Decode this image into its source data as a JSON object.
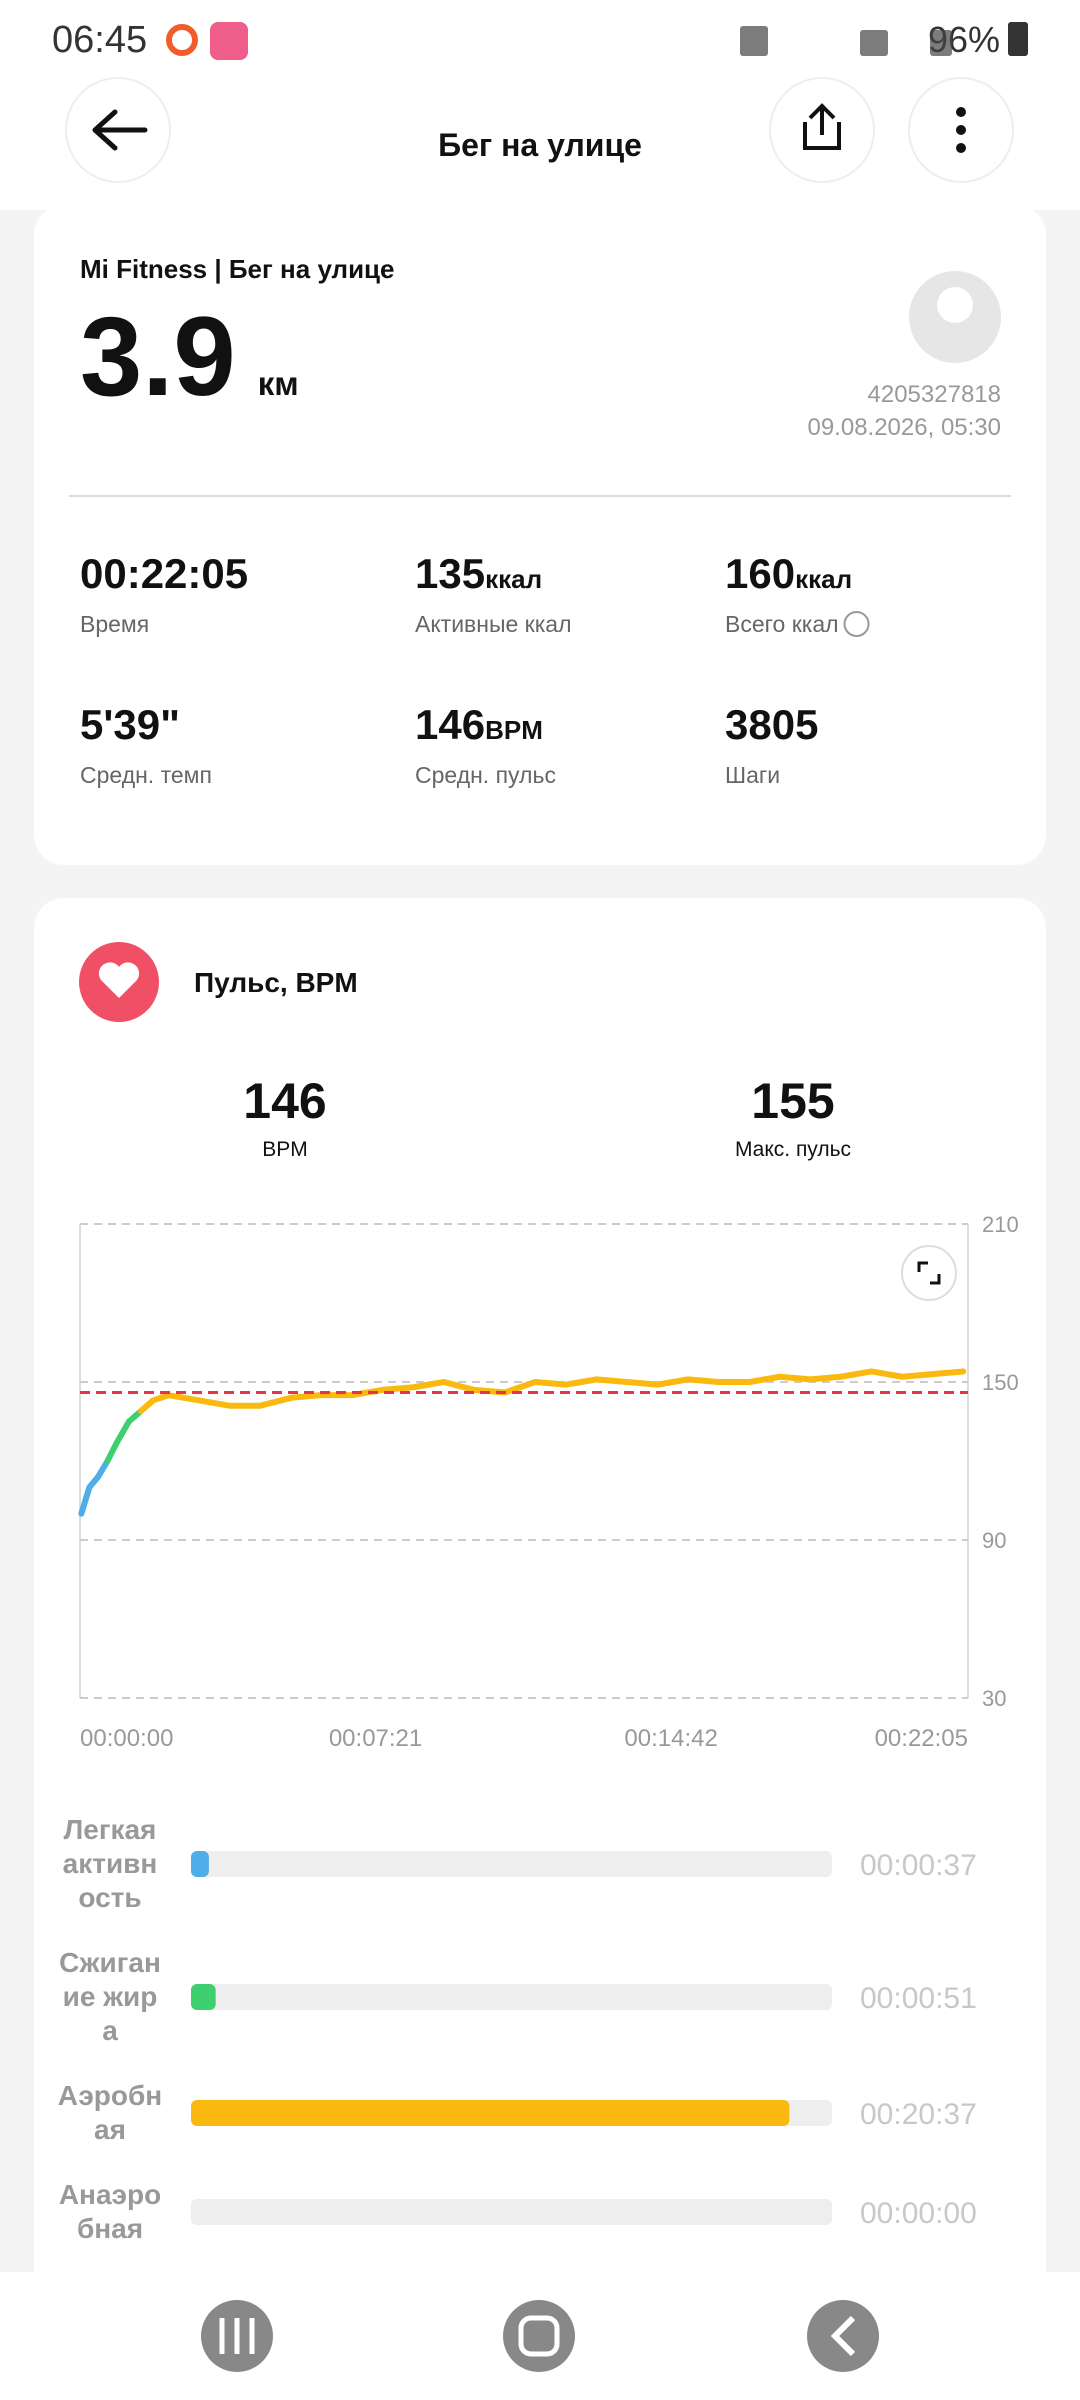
{
  "status_bar": {
    "time": "06:45",
    "battery": "96%"
  },
  "header": {
    "title": "Бег на улице"
  },
  "summary": {
    "source": "Mi Fitness | Бег на улице",
    "distance": "3.9",
    "distance_unit": "км",
    "user_id": "4205327818",
    "datetime": "09.08.2026, 05:30"
  },
  "stats": [
    {
      "value": "00:22:05",
      "label": "Время"
    },
    {
      "value": "135",
      "unit": "ккал",
      "label": "Активные ккал"
    },
    {
      "value": "160",
      "unit": "ккал",
      "label": "Всего ккал"
    },
    {
      "value": "5'39\"",
      "label": "Средн. темп"
    },
    {
      "value": "146",
      "unit": "BPM",
      "label": "Средн. пульс"
    },
    {
      "value": "3805",
      "label": "Шаги"
    }
  ],
  "heart_rate": {
    "title": "Пульс, BPM",
    "avg": "146",
    "avg_label": "BPM",
    "max": "155",
    "max_label": "Макс. пульс"
  },
  "chart_data": {
    "type": "line",
    "x": [
      2,
      14,
      27,
      41,
      55,
      73,
      91,
      109,
      132,
      178,
      223,
      269,
      315,
      360,
      406,
      451,
      497,
      543,
      588,
      634,
      679,
      725,
      771,
      816,
      862,
      907,
      953,
      999,
      1044,
      1090,
      1135,
      1181,
      1227,
      1272,
      1318
    ],
    "series": [
      {
        "color": "#4daeea",
        "values": [
          100,
          110,
          114,
          120,
          null,
          null,
          null,
          null,
          null,
          null,
          null,
          null,
          null,
          null,
          null,
          null,
          null,
          null,
          null,
          null,
          null,
          null,
          null,
          null,
          null,
          null,
          null,
          null,
          null,
          null,
          null,
          null,
          null,
          null,
          null
        ]
      },
      {
        "color": "#3ecf6e",
        "values": [
          null,
          null,
          null,
          120,
          127,
          135,
          139,
          null,
          null,
          null,
          null,
          null,
          null,
          null,
          null,
          null,
          null,
          null,
          null,
          null,
          null,
          null,
          null,
          null,
          null,
          null,
          null,
          null,
          null,
          null,
          null,
          null,
          null,
          null,
          null
        ]
      },
      {
        "color": "#fbb910",
        "values": [
          null,
          null,
          null,
          null,
          null,
          null,
          139,
          143,
          145,
          143,
          141,
          141,
          144,
          145,
          145,
          147,
          148,
          150,
          147,
          146,
          150,
          149,
          151,
          150,
          149,
          151,
          150,
          150,
          152,
          151,
          152,
          154,
          152,
          153,
          154
        ]
      }
    ],
    "xlim": [
      0,
      1325
    ],
    "xticks": [
      {
        "value": 0,
        "label": "00:00:00"
      },
      {
        "value": 441,
        "label": "00:07:21"
      },
      {
        "value": 882,
        "label": "00:14:42"
      },
      {
        "value": 1325,
        "label": "00:22:05"
      }
    ],
    "ylim": [
      30,
      210
    ],
    "yticks": [
      30,
      90,
      150,
      210
    ],
    "grid": true,
    "avg_line": 146,
    "avg_line_color": "#e8334a"
  },
  "zones": [
    {
      "label": "Легкая активность",
      "duration": {
        "value": 37,
        "label": "00:00:37"
      },
      "color": "#4daeea"
    },
    {
      "label": "Сжигание жира",
      "duration": {
        "value": 51,
        "label": "00:00:51"
      },
      "color": "#3ecf6e"
    },
    {
      "label": "Аэробная",
      "duration": {
        "value": 1237,
        "label": "00:20:37"
      },
      "color": "#fbb910"
    },
    {
      "label": "Анаэробная",
      "duration": {
        "value": 0,
        "label": "00:00:00"
      }
    }
  ]
}
